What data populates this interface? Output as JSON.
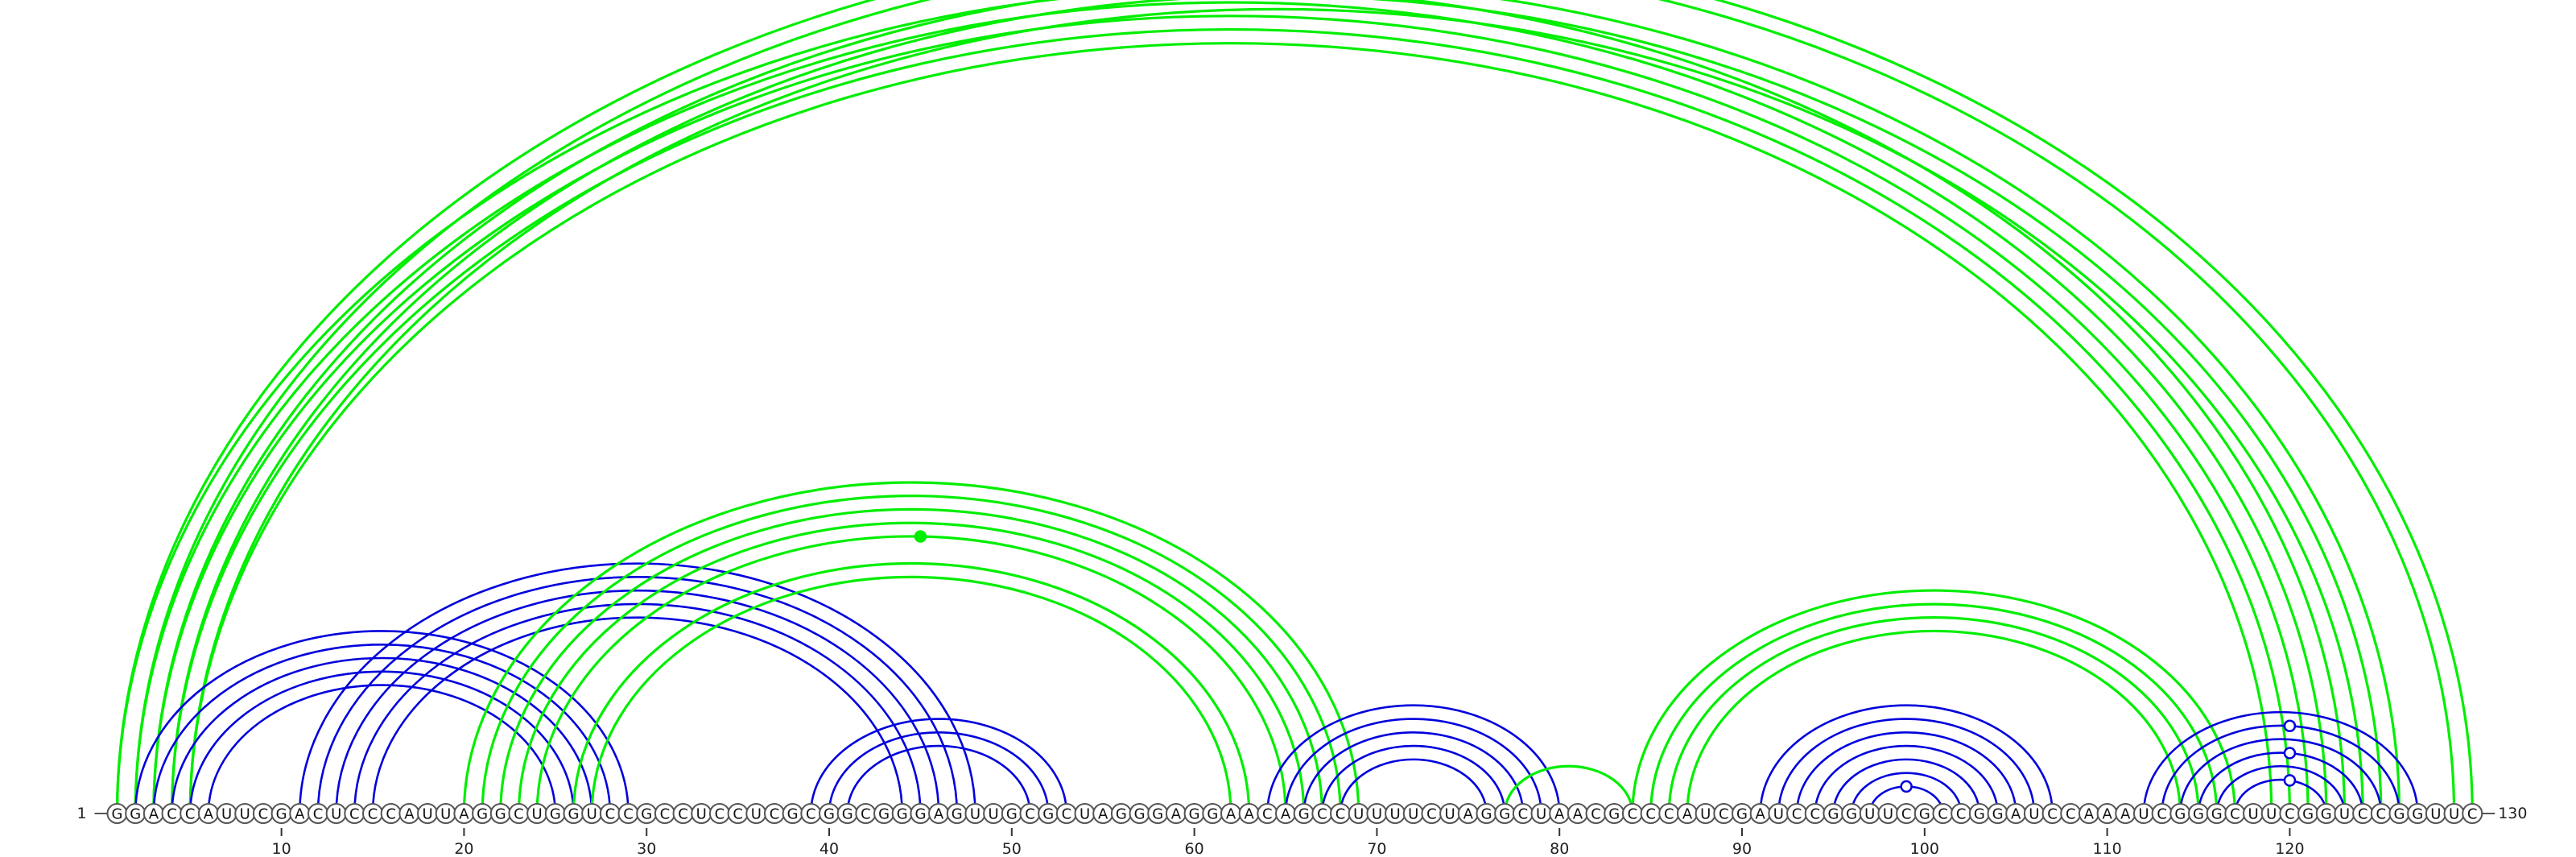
{
  "sequence": "GGACCAUUCGACUCCCAUUAGGCUGGUCCGCCUCCUCGCGGCGGGAGUUGCGCUAGGGAGGAACAGCCUUUUCUAGGCUAACGCCCAUCGAUCCGGUUCGCCGGAUCCAAAUCGGGCUUCGGUCCGGUUC",
  "start_label": "1",
  "end_label": "130",
  "ticks": [
    {
      "pos": 10,
      "label": "10"
    },
    {
      "pos": 20,
      "label": "20"
    },
    {
      "pos": 30,
      "label": "30"
    },
    {
      "pos": 40,
      "label": "40"
    },
    {
      "pos": 50,
      "label": "50"
    },
    {
      "pos": 60,
      "label": "60"
    },
    {
      "pos": 70,
      "label": "70"
    },
    {
      "pos": 80,
      "label": "80"
    },
    {
      "pos": 90,
      "label": "90"
    },
    {
      "pos": 100,
      "label": "100"
    },
    {
      "pos": 110,
      "label": "110"
    },
    {
      "pos": 120,
      "label": "120"
    }
  ],
  "colors": {
    "blue": "#0000dd",
    "green": "#00ee00"
  },
  "arcs": [
    {
      "i": 1,
      "j": 123,
      "color": "green"
    },
    {
      "i": 2,
      "j": 122,
      "color": "green"
    },
    {
      "i": 3,
      "j": 121,
      "color": "green"
    },
    {
      "i": 4,
      "j": 120,
      "color": "green"
    },
    {
      "i": 5,
      "j": 119,
      "color": "green"
    },
    {
      "i": 1,
      "j": 130,
      "color": "green"
    },
    {
      "i": 2,
      "j": 129,
      "color": "green"
    },
    {
      "i": 3,
      "j": 126,
      "color": "green"
    },
    {
      "i": 4,
      "j": 125,
      "color": "green"
    },
    {
      "i": 5,
      "j": 124,
      "color": "green"
    },
    {
      "i": 2,
      "j": 29,
      "color": "blue"
    },
    {
      "i": 3,
      "j": 28,
      "color": "blue"
    },
    {
      "i": 4,
      "j": 27,
      "color": "blue"
    },
    {
      "i": 5,
      "j": 26,
      "color": "blue"
    },
    {
      "i": 6,
      "j": 25,
      "color": "blue"
    },
    {
      "i": 11,
      "j": 48,
      "color": "blue"
    },
    {
      "i": 12,
      "j": 47,
      "color": "blue"
    },
    {
      "i": 13,
      "j": 46,
      "color": "blue"
    },
    {
      "i": 14,
      "j": 45,
      "color": "blue"
    },
    {
      "i": 15,
      "j": 44,
      "color": "blue"
    },
    {
      "i": 20,
      "j": 69,
      "color": "green"
    },
    {
      "i": 21,
      "j": 68,
      "color": "green"
    },
    {
      "i": 22,
      "j": 67,
      "color": "green"
    },
    {
      "i": 23,
      "j": 66,
      "color": "green"
    },
    {
      "i": 24,
      "j": 65,
      "color": "green"
    },
    {
      "i": 26,
      "j": 63,
      "color": "green"
    },
    {
      "i": 27,
      "j": 62,
      "color": "green"
    },
    {
      "i": 39,
      "j": 53,
      "color": "blue"
    },
    {
      "i": 40,
      "j": 52,
      "color": "blue"
    },
    {
      "i": 41,
      "j": 51,
      "color": "blue"
    },
    {
      "i": 64,
      "j": 80,
      "color": "blue"
    },
    {
      "i": 65,
      "j": 79,
      "color": "blue"
    },
    {
      "i": 66,
      "j": 78,
      "color": "blue"
    },
    {
      "i": 67,
      "j": 77,
      "color": "blue"
    },
    {
      "i": 68,
      "j": 76,
      "color": "blue"
    },
    {
      "i": 77,
      "j": 84,
      "color": "green"
    },
    {
      "i": 84,
      "j": 117,
      "color": "green"
    },
    {
      "i": 85,
      "j": 116,
      "color": "green"
    },
    {
      "i": 86,
      "j": 115,
      "color": "green"
    },
    {
      "i": 87,
      "j": 114,
      "color": "green"
    },
    {
      "i": 91,
      "j": 107,
      "color": "blue"
    },
    {
      "i": 92,
      "j": 106,
      "color": "blue"
    },
    {
      "i": 93,
      "j": 105,
      "color": "blue"
    },
    {
      "i": 94,
      "j": 104,
      "color": "blue"
    },
    {
      "i": 95,
      "j": 103,
      "color": "blue"
    },
    {
      "i": 96,
      "j": 102,
      "color": "blue"
    },
    {
      "i": 97,
      "j": 101,
      "color": "blue"
    },
    {
      "i": 112,
      "j": 127,
      "color": "blue"
    },
    {
      "i": 113,
      "j": 126,
      "color": "blue"
    },
    {
      "i": 114,
      "j": 125,
      "color": "blue"
    },
    {
      "i": 115,
      "j": 124,
      "color": "blue"
    },
    {
      "i": 116,
      "j": 123,
      "color": "blue"
    },
    {
      "i": 117,
      "j": 122,
      "color": "blue"
    }
  ],
  "markers": [
    {
      "pos": 66,
      "arc_i": 1,
      "arc_j": 130,
      "filled": false,
      "color": "green"
    },
    {
      "pos": 45,
      "arc_i": 24,
      "arc_j": 65,
      "filled": true,
      "color": "green"
    },
    {
      "pos": 99,
      "arc_i": 97,
      "arc_j": 101,
      "filled": false,
      "color": "blue"
    },
    {
      "pos": 120,
      "arc_i": 113,
      "arc_j": 126,
      "filled": false,
      "color": "blue"
    },
    {
      "pos": 120,
      "arc_i": 115,
      "arc_j": 124,
      "filled": false,
      "color": "blue"
    },
    {
      "pos": 120,
      "arc_i": 117,
      "arc_j": 122,
      "filled": false,
      "color": "blue"
    }
  ]
}
